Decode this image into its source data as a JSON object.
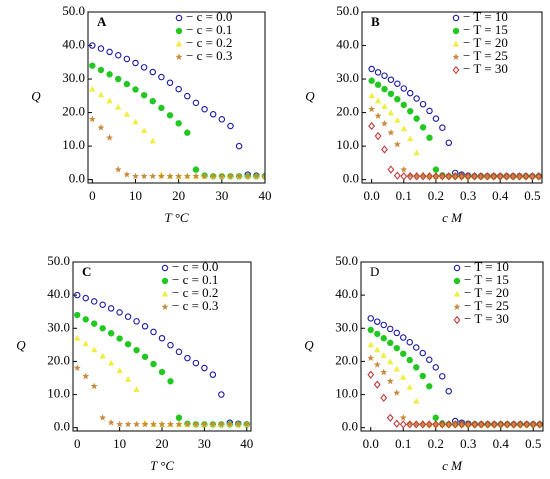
{
  "chart_data": [
    {
      "type": "scatter",
      "title": "A",
      "title_bold": true,
      "xlabel": "T  °C",
      "ylabel": "Q",
      "legend": "upper right",
      "xlim": [
        -1,
        40
      ],
      "xticks": [
        0,
        10,
        20,
        30,
        40
      ],
      "ylim": [
        -1,
        50
      ],
      "yticks": [
        {
          "value": 0,
          "label": "0.0"
        },
        {
          "value": 10,
          "label": "10.0"
        },
        {
          "value": 20,
          "label": "20.0"
        },
        {
          "value": 30,
          "label": "30.0"
        },
        {
          "value": 40,
          "label": "40.0"
        },
        {
          "value": 50,
          "label": "50.0"
        }
      ],
      "x": [
        0,
        2,
        4,
        6,
        8,
        10,
        12,
        14,
        16,
        18,
        20,
        22,
        24,
        26,
        28,
        30,
        32,
        34,
        36,
        38,
        40
      ],
      "series": [
        {
          "name": "− c = 0.0",
          "color": "#1a1aa6",
          "marker": "circle-open",
          "values": [
            40.0,
            39.1,
            38.1,
            37.1,
            36.0,
            34.8,
            33.5,
            32.1,
            30.6,
            28.9,
            27.0,
            24.9,
            22.9,
            21.0,
            19.5,
            18.0,
            16.0,
            10.0,
            1.5,
            1.2,
            1.0
          ]
        },
        {
          "name": "− c = 0.1",
          "color": "#22c722",
          "marker": "circle",
          "values": [
            34.0,
            32.7,
            31.4,
            30.0,
            28.5,
            26.9,
            25.2,
            23.4,
            21.4,
            19.2,
            16.8,
            14.0,
            3.0,
            1.2,
            1.0,
            1.0,
            1.0,
            1.0,
            1.0,
            1.0,
            1.0
          ]
        },
        {
          "name": "− c = 0.2",
          "color": "#eeee44",
          "marker": "triangle",
          "values": [
            27.0,
            25.3,
            23.5,
            21.6,
            19.5,
            17.2,
            14.6,
            11.5,
            1.5,
            1.0,
            1.0,
            1.0,
            1.0,
            1.0,
            1.0,
            1.0,
            1.0,
            1.0,
            1.0,
            1.0,
            1.0
          ]
        },
        {
          "name": "− c = 0.3",
          "color": "#c8893a",
          "marker": "star",
          "values": [
            18.0,
            15.5,
            12.5,
            3.0,
            1.5,
            1.0,
            1.0,
            1.0,
            1.0,
            1.0,
            1.0,
            1.0,
            1.0,
            1.0,
            1.0,
            1.0,
            1.0,
            1.0,
            1.0,
            1.0,
            1.0
          ]
        }
      ]
    },
    {
      "type": "scatter",
      "title": "B",
      "title_bold": true,
      "xlabel": "c  M",
      "ylabel": "Q",
      "legend": "upper right",
      "xlim": [
        -0.03,
        0.53
      ],
      "xticks": [
        {
          "value": 0,
          "label": "0.0"
        },
        0.1,
        0.2,
        0.3,
        0.4,
        0.5
      ],
      "ylim": [
        -1,
        50
      ],
      "yticks": [
        {
          "value": 0,
          "label": "0.0"
        },
        {
          "value": 10,
          "label": "10.0"
        },
        {
          "value": 20,
          "label": "20.0"
        },
        {
          "value": 30,
          "label": "30.0"
        },
        {
          "value": 40,
          "label": "40.0"
        },
        {
          "value": 50,
          "label": "50.0"
        }
      ],
      "x": [
        0,
        0.02,
        0.04,
        0.06,
        0.08,
        0.1,
        0.12,
        0.14,
        0.16,
        0.18,
        0.2,
        0.22,
        0.24,
        0.26,
        0.28,
        0.3,
        0.32,
        0.34,
        0.36,
        0.38,
        0.4,
        0.42,
        0.44,
        0.46,
        0.48,
        0.5,
        0.52
      ],
      "series": [
        {
          "name": "− T = 10",
          "color": "#1a1aa6",
          "marker": "circle-open",
          "values": [
            33.0,
            32.0,
            31.0,
            29.8,
            28.6,
            27.2,
            25.8,
            24.2,
            22.5,
            20.5,
            18.2,
            15.5,
            11.0,
            2.0,
            1.5,
            1.2,
            1.0,
            1.0,
            1.0,
            1.0,
            1.0,
            1.0,
            1.0,
            1.0,
            1.0,
            1.0,
            1.0
          ]
        },
        {
          "name": "− T = 15",
          "color": "#22c722",
          "marker": "circle",
          "values": [
            29.5,
            28.3,
            27.0,
            25.6,
            24.0,
            22.3,
            20.4,
            18.2,
            15.6,
            12.5,
            3.0,
            1.3,
            1.0,
            1.0,
            1.0,
            1.0,
            1.0,
            1.0,
            1.0,
            1.0,
            1.0,
            1.0,
            1.0,
            1.0,
            1.0,
            1.0,
            1.0
          ]
        },
        {
          "name": "− T = 20",
          "color": "#eeee44",
          "marker": "triangle",
          "values": [
            25.0,
            23.5,
            21.8,
            19.9,
            17.7,
            15.2,
            12.2,
            8.0,
            1.5,
            1.0,
            1.0,
            1.0,
            1.0,
            1.0,
            1.0,
            1.0,
            1.0,
            1.0,
            1.0,
            1.0,
            1.0,
            1.0,
            1.0,
            1.0,
            1.0,
            1.0,
            1.0
          ]
        },
        {
          "name": "− T = 25",
          "color": "#c8893a",
          "marker": "star",
          "values": [
            21.0,
            19.0,
            16.7,
            14.0,
            10.5,
            3.0,
            1.2,
            1.0,
            1.0,
            1.0,
            1.0,
            1.0,
            1.0,
            1.0,
            1.0,
            1.0,
            1.0,
            1.0,
            1.0,
            1.0,
            1.0,
            1.0,
            1.0,
            1.0,
            1.0,
            1.0,
            1.0
          ]
        },
        {
          "name": "− T = 30",
          "color": "#c03a3a",
          "marker": "diamond-open",
          "values": [
            16.0,
            13.0,
            9.0,
            3.0,
            1.2,
            1.0,
            1.0,
            1.0,
            1.0,
            1.0,
            1.0,
            1.0,
            1.0,
            1.0,
            1.0,
            1.0,
            1.0,
            1.0,
            1.0,
            1.0,
            1.0,
            1.0,
            1.0,
            1.0,
            1.0,
            1.0,
            1.0
          ]
        }
      ]
    },
    {
      "type": "scatter",
      "title": "C",
      "title_bold": true,
      "xlabel": "T  °C",
      "ylabel": "Q",
      "legend": "upper right",
      "xlim": [
        -1,
        41
      ],
      "xticks": [
        0,
        10,
        20,
        30,
        40
      ],
      "ylim": [
        -1,
        50
      ],
      "yticks": [
        {
          "value": 0,
          "label": "0.0"
        },
        {
          "value": 10,
          "label": "10.0"
        },
        {
          "value": 20,
          "label": "20.0"
        },
        {
          "value": 30,
          "label": "30.0"
        },
        {
          "value": 40,
          "label": "40.0"
        },
        {
          "value": 50,
          "label": "50.0"
        }
      ],
      "x": [
        0,
        2,
        4,
        6,
        8,
        10,
        12,
        14,
        16,
        18,
        20,
        22,
        24,
        26,
        28,
        30,
        32,
        34,
        36,
        38,
        40
      ],
      "series": [
        {
          "name": "− c = 0.0",
          "color": "#1a1aa6",
          "marker": "circle-open",
          "values": [
            40.0,
            39.1,
            38.1,
            37.1,
            36.0,
            34.8,
            33.5,
            32.1,
            30.6,
            28.9,
            27.0,
            24.9,
            22.9,
            21.0,
            19.5,
            18.0,
            16.0,
            10.0,
            1.5,
            1.2,
            1.0
          ]
        },
        {
          "name": "− c = 0.1",
          "color": "#22c722",
          "marker": "circle",
          "values": [
            34.0,
            32.7,
            31.4,
            30.0,
            28.5,
            26.9,
            25.2,
            23.4,
            21.4,
            19.2,
            16.8,
            14.0,
            3.0,
            1.2,
            1.0,
            1.0,
            1.0,
            1.0,
            1.0,
            1.0,
            1.0
          ]
        },
        {
          "name": "− c = 0.2",
          "color": "#eeee44",
          "marker": "triangle",
          "values": [
            27.0,
            25.3,
            23.5,
            21.6,
            19.5,
            17.2,
            14.6,
            11.5,
            1.5,
            1.0,
            1.0,
            1.0,
            1.0,
            1.0,
            1.0,
            1.0,
            1.0,
            1.0,
            1.0,
            1.0,
            1.0
          ]
        },
        {
          "name": "− c = 0.3",
          "color": "#c8893a",
          "marker": "star",
          "values": [
            18.0,
            15.5,
            12.5,
            3.0,
            1.5,
            1.0,
            1.0,
            1.0,
            1.0,
            1.0,
            1.0,
            1.0,
            1.0,
            1.0,
            1.0,
            1.0,
            1.0,
            1.0,
            1.0,
            1.0,
            1.0
          ]
        }
      ]
    },
    {
      "type": "scatter",
      "title": "D",
      "title_bold": false,
      "xlabel": "c  M",
      "ylabel": "Q",
      "legend": "upper right",
      "xlim": [
        -0.03,
        0.53
      ],
      "xticks": [
        {
          "value": 0,
          "label": "0.0"
        },
        0.1,
        0.2,
        0.3,
        0.4,
        0.5
      ],
      "ylim": [
        -1,
        50
      ],
      "yticks": [
        {
          "value": 0,
          "label": "0.0"
        },
        {
          "value": 10,
          "label": "10.0"
        },
        {
          "value": 20,
          "label": "20.0"
        },
        {
          "value": 30,
          "label": "30.0"
        },
        {
          "value": 40,
          "label": "40.0"
        },
        {
          "value": 50,
          "label": "50.0"
        }
      ],
      "x": [
        0,
        0.02,
        0.04,
        0.06,
        0.08,
        0.1,
        0.12,
        0.14,
        0.16,
        0.18,
        0.2,
        0.22,
        0.24,
        0.26,
        0.28,
        0.3,
        0.32,
        0.34,
        0.36,
        0.38,
        0.4,
        0.42,
        0.44,
        0.46,
        0.48,
        0.5,
        0.52
      ],
      "series": [
        {
          "name": "− T = 10",
          "color": "#1a1aa6",
          "marker": "circle-open",
          "values": [
            33.0,
            32.0,
            31.0,
            29.8,
            28.6,
            27.2,
            25.8,
            24.2,
            22.5,
            20.5,
            18.2,
            15.5,
            11.0,
            2.0,
            1.5,
            1.2,
            1.0,
            1.0,
            1.0,
            1.0,
            1.0,
            1.0,
            1.0,
            1.0,
            1.0,
            1.0,
            1.0
          ]
        },
        {
          "name": "− T = 15",
          "color": "#22c722",
          "marker": "circle",
          "values": [
            29.5,
            28.3,
            27.0,
            25.6,
            24.0,
            22.3,
            20.4,
            18.2,
            15.6,
            12.5,
            3.0,
            1.3,
            1.0,
            1.0,
            1.0,
            1.0,
            1.0,
            1.0,
            1.0,
            1.0,
            1.0,
            1.0,
            1.0,
            1.0,
            1.0,
            1.0,
            1.0
          ]
        },
        {
          "name": "− T = 20",
          "color": "#eeee44",
          "marker": "triangle",
          "values": [
            25.0,
            23.5,
            21.8,
            19.9,
            17.7,
            15.2,
            12.2,
            8.0,
            1.5,
            1.0,
            1.0,
            1.0,
            1.0,
            1.0,
            1.0,
            1.0,
            1.0,
            1.0,
            1.0,
            1.0,
            1.0,
            1.0,
            1.0,
            1.0,
            1.0,
            1.0,
            1.0
          ]
        },
        {
          "name": "− T = 25",
          "color": "#c8893a",
          "marker": "star",
          "values": [
            21.0,
            19.0,
            16.7,
            14.0,
            10.5,
            3.0,
            1.2,
            1.0,
            1.0,
            1.0,
            1.0,
            1.0,
            1.0,
            1.0,
            1.0,
            1.0,
            1.0,
            1.0,
            1.0,
            1.0,
            1.0,
            1.0,
            1.0,
            1.0,
            1.0,
            1.0,
            1.0
          ]
        },
        {
          "name": "− T = 30",
          "color": "#c03a3a",
          "marker": "diamond-open",
          "values": [
            16.0,
            13.0,
            9.0,
            3.0,
            1.2,
            1.0,
            1.0,
            1.0,
            1.0,
            1.0,
            1.0,
            1.0,
            1.0,
            1.0,
            1.0,
            1.0,
            1.0,
            1.0,
            1.0,
            1.0,
            1.0,
            1.0,
            1.0,
            1.0,
            1.0,
            1.0,
            1.0
          ]
        }
      ]
    }
  ]
}
